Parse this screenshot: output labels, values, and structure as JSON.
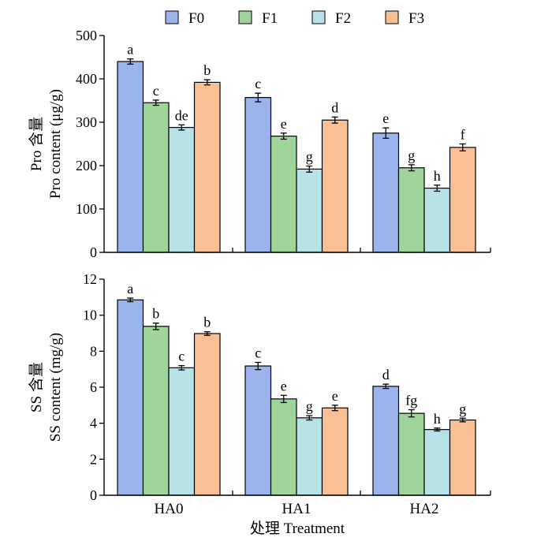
{
  "legend": {
    "placement": "top-center",
    "entries": [
      {
        "label": "F0",
        "color": "#9bb4ec"
      },
      {
        "label": "F1",
        "color": "#9fd59a"
      },
      {
        "label": "F2",
        "color": "#b7e3e8"
      },
      {
        "label": "F3",
        "color": "#f9c096"
      }
    ]
  },
  "xlabel": "处理 Treatment",
  "chart_data": [
    {
      "type": "bar",
      "categories": [
        "HA0",
        "HA1",
        "HA2"
      ],
      "ylabel_line1": "Pro 含量",
      "ylabel_line2": "Pro content (μg/g)",
      "ylim": [
        0,
        500
      ],
      "yticks": [
        0,
        100,
        200,
        300,
        400,
        500
      ],
      "grid": false,
      "series": [
        {
          "name": "F0",
          "values": [
            440,
            357,
            275
          ],
          "errors": [
            6,
            10,
            12
          ],
          "letters": [
            "a",
            "c",
            "e"
          ]
        },
        {
          "name": "F1",
          "values": [
            345,
            268,
            195
          ],
          "errors": [
            6,
            7,
            7
          ],
          "letters": [
            "c",
            "e",
            "g"
          ]
        },
        {
          "name": "F2",
          "values": [
            288,
            192,
            148
          ],
          "errors": [
            6,
            7,
            7
          ],
          "letters": [
            "de",
            "g",
            "h"
          ]
        },
        {
          "name": "F3",
          "values": [
            392,
            305,
            242
          ],
          "errors": [
            6,
            7,
            8
          ],
          "letters": [
            "b",
            "d",
            "f"
          ]
        }
      ]
    },
    {
      "type": "bar",
      "categories": [
        "HA0",
        "HA1",
        "HA2"
      ],
      "ylabel_line1": "SS 含量",
      "ylabel_line2": "SS content (mg/g)",
      "ylim": [
        0,
        12
      ],
      "yticks": [
        0,
        2,
        4,
        6,
        8,
        10,
        12
      ],
      "grid": false,
      "series": [
        {
          "name": "F0",
          "values": [
            10.85,
            7.18,
            6.05
          ],
          "errors": [
            0.1,
            0.2,
            0.12
          ],
          "letters": [
            "a",
            "c",
            "d"
          ]
        },
        {
          "name": "F1",
          "values": [
            9.38,
            5.35,
            4.55
          ],
          "errors": [
            0.18,
            0.2,
            0.2
          ],
          "letters": [
            "b",
            "e",
            "fg"
          ]
        },
        {
          "name": "F2",
          "values": [
            7.08,
            4.3,
            3.65
          ],
          "errors": [
            0.12,
            0.12,
            0.08
          ],
          "letters": [
            "c",
            "g",
            "h"
          ]
        },
        {
          "name": "F3",
          "values": [
            8.98,
            4.85,
            4.18
          ],
          "errors": [
            0.1,
            0.15,
            0.1
          ],
          "letters": [
            "b",
            "e",
            "g"
          ]
        }
      ]
    }
  ]
}
